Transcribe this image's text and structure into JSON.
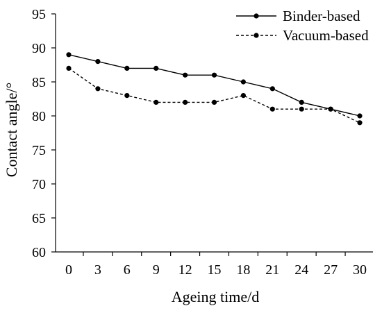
{
  "chart_data": {
    "type": "line",
    "xlabel": "Ageing time/d",
    "ylabel": "Contact angle/°",
    "categories": [
      "0",
      "3",
      "6",
      "9",
      "12",
      "15",
      "18",
      "21",
      "24",
      "27",
      "30"
    ],
    "yticks": [
      "60",
      "65",
      "70",
      "75",
      "80",
      "85",
      "90",
      "95"
    ],
    "ylim": [
      60,
      95
    ],
    "grid": false,
    "legend_position": "top-right",
    "series": [
      {
        "name": "Binder-based",
        "line_style": "solid",
        "color": "#000000",
        "values": [
          89,
          88,
          87,
          87,
          86,
          86,
          85,
          84,
          82,
          81,
          80
        ]
      },
      {
        "name": "Vacuum-based",
        "line_style": "dashed",
        "color": "#000000",
        "values": [
          87,
          84,
          83,
          82,
          82,
          82,
          83,
          81,
          81,
          81,
          79
        ]
      }
    ]
  }
}
